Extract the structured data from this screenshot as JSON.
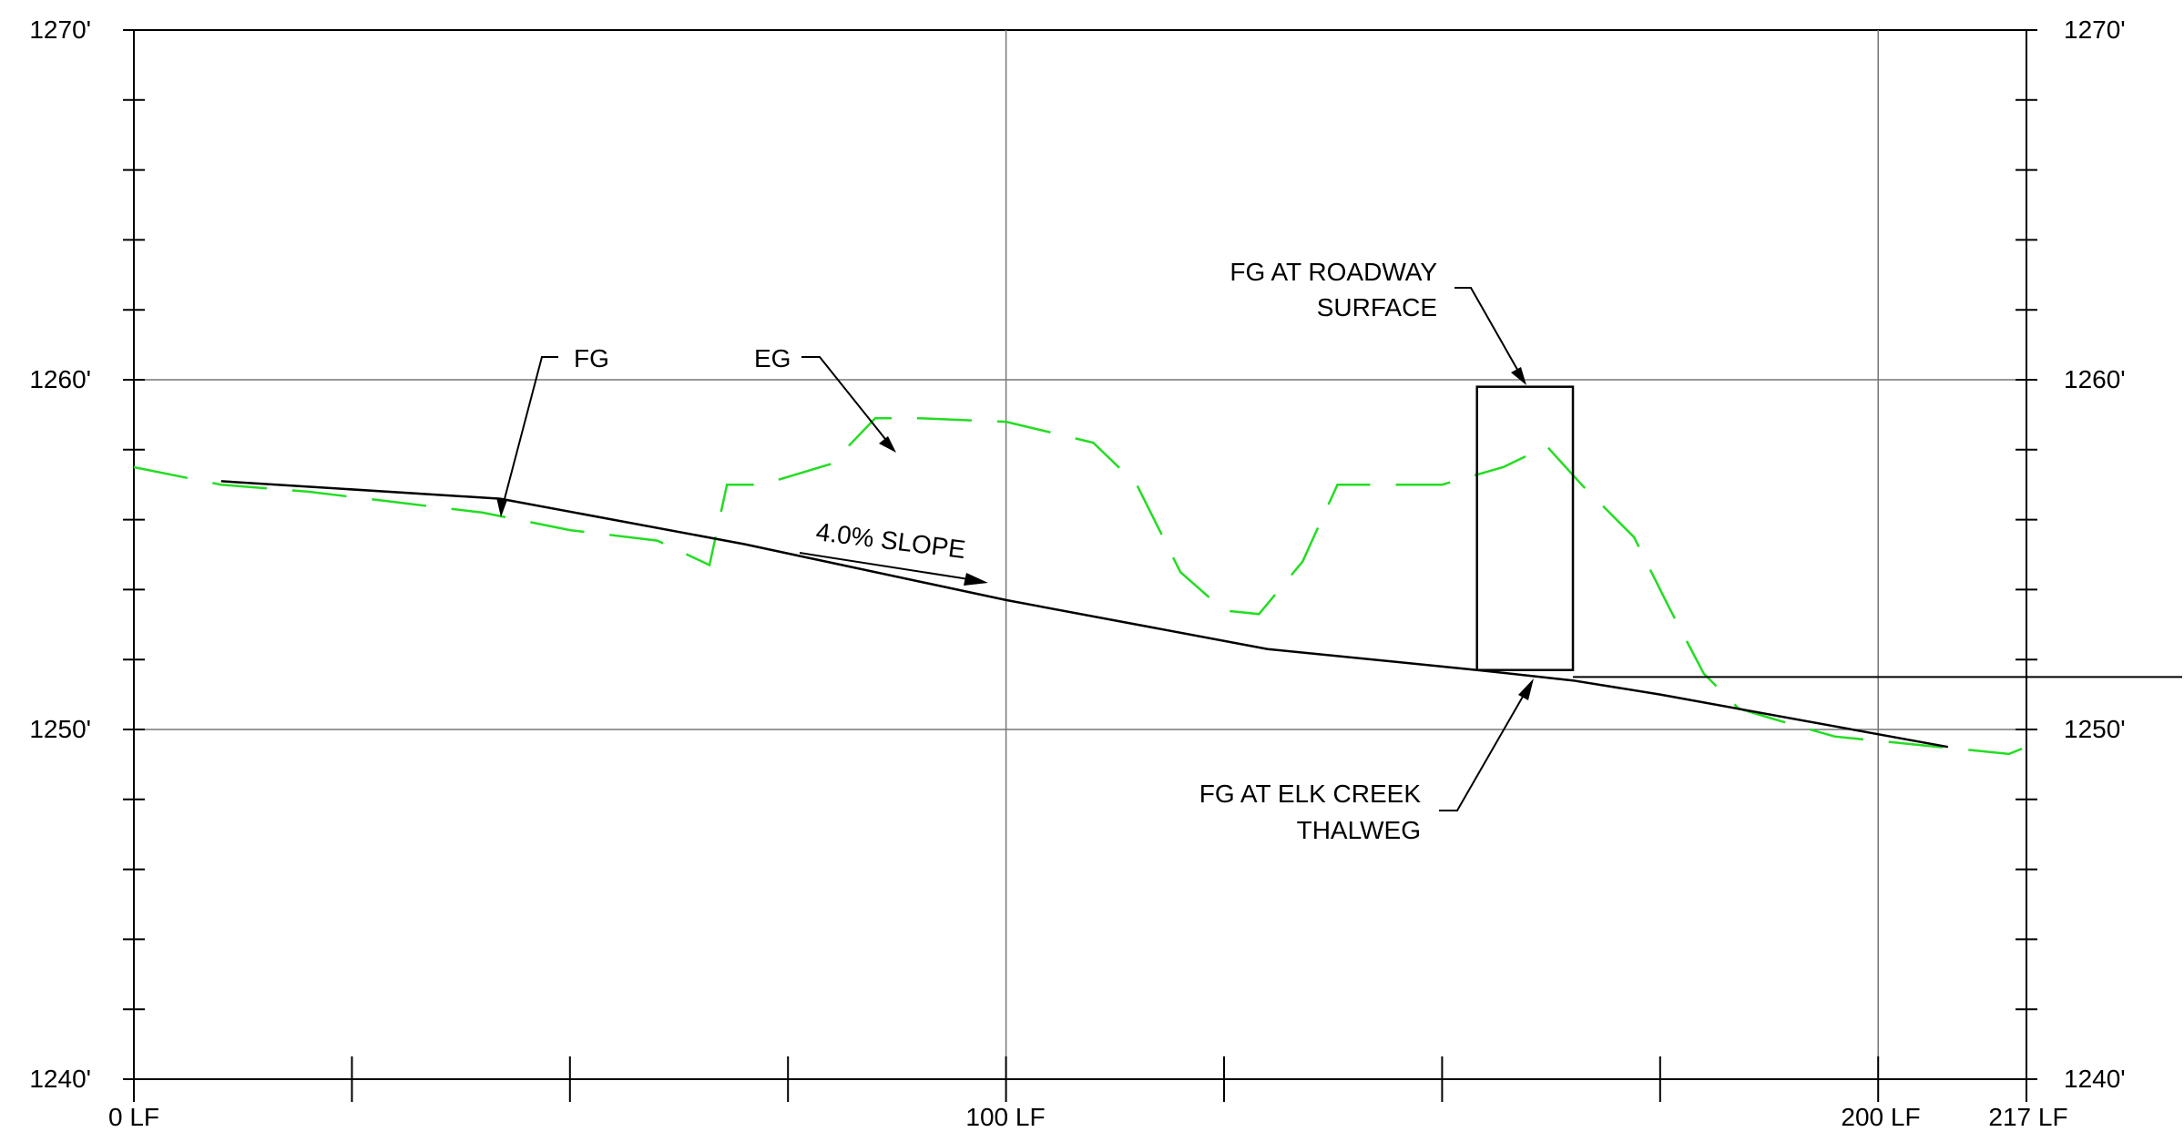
{
  "chart_data": {
    "type": "line",
    "xlim": [
      0,
      217
    ],
    "ylim": [
      1240,
      1270
    ],
    "grid": true,
    "y_ticks": [
      "1270'",
      "1260'",
      "1250'",
      "1240'"
    ],
    "x_ticks": [
      "0 LF",
      "100 LF",
      "200 LF",
      "217 LF"
    ],
    "series": [
      {
        "name": "FG",
        "style": "solid",
        "color": "#000000",
        "x": [
          10,
          42,
          70,
          100,
          130,
          154,
          165,
          175,
          208
        ],
        "y": [
          1257.1,
          1256.6,
          1255.3,
          1253.7,
          1252.3,
          1251.7,
          1251.4,
          1251.0,
          1249.5
        ]
      },
      {
        "name": "EG",
        "style": "dashed",
        "color": "#22dd22",
        "x": [
          0,
          10,
          20,
          30,
          40,
          50,
          60,
          66,
          68,
          72,
          80,
          85,
          90,
          100,
          110,
          115,
          120,
          125,
          129,
          134,
          138,
          142,
          150,
          157,
          162,
          166,
          172,
          176,
          180,
          184,
          188,
          195,
          207,
          215,
          216,
          217
        ],
        "y": [
          1257.5,
          1257.0,
          1256.8,
          1256.5,
          1256.2,
          1255.7,
          1255.4,
          1254.7,
          1257.0,
          1257.0,
          1257.6,
          1258.9,
          1258.9,
          1258.8,
          1258.2,
          1257.0,
          1254.5,
          1253.4,
          1253.3,
          1254.8,
          1257.0,
          1257.0,
          1257.0,
          1257.5,
          1258.1,
          1257.0,
          1255.5,
          1253.5,
          1251.6,
          1250.6,
          1250.3,
          1249.8,
          1249.5,
          1249.3,
          1249.4,
          1249.5
        ]
      }
    ],
    "annotations": {
      "fg": "FG",
      "eg": "EG",
      "slope": "4.0% SLOPE",
      "roadway_line1": "FG AT ROADWAY",
      "roadway_line2": "SURFACE",
      "creek_line1": "FG AT ELK CREEK",
      "creek_line2": "THALWEG"
    },
    "culvert": {
      "x_start": 154,
      "x_end": 165,
      "bottom": 1251.7,
      "top": 1259.8
    },
    "creek_level": 1251.5
  }
}
